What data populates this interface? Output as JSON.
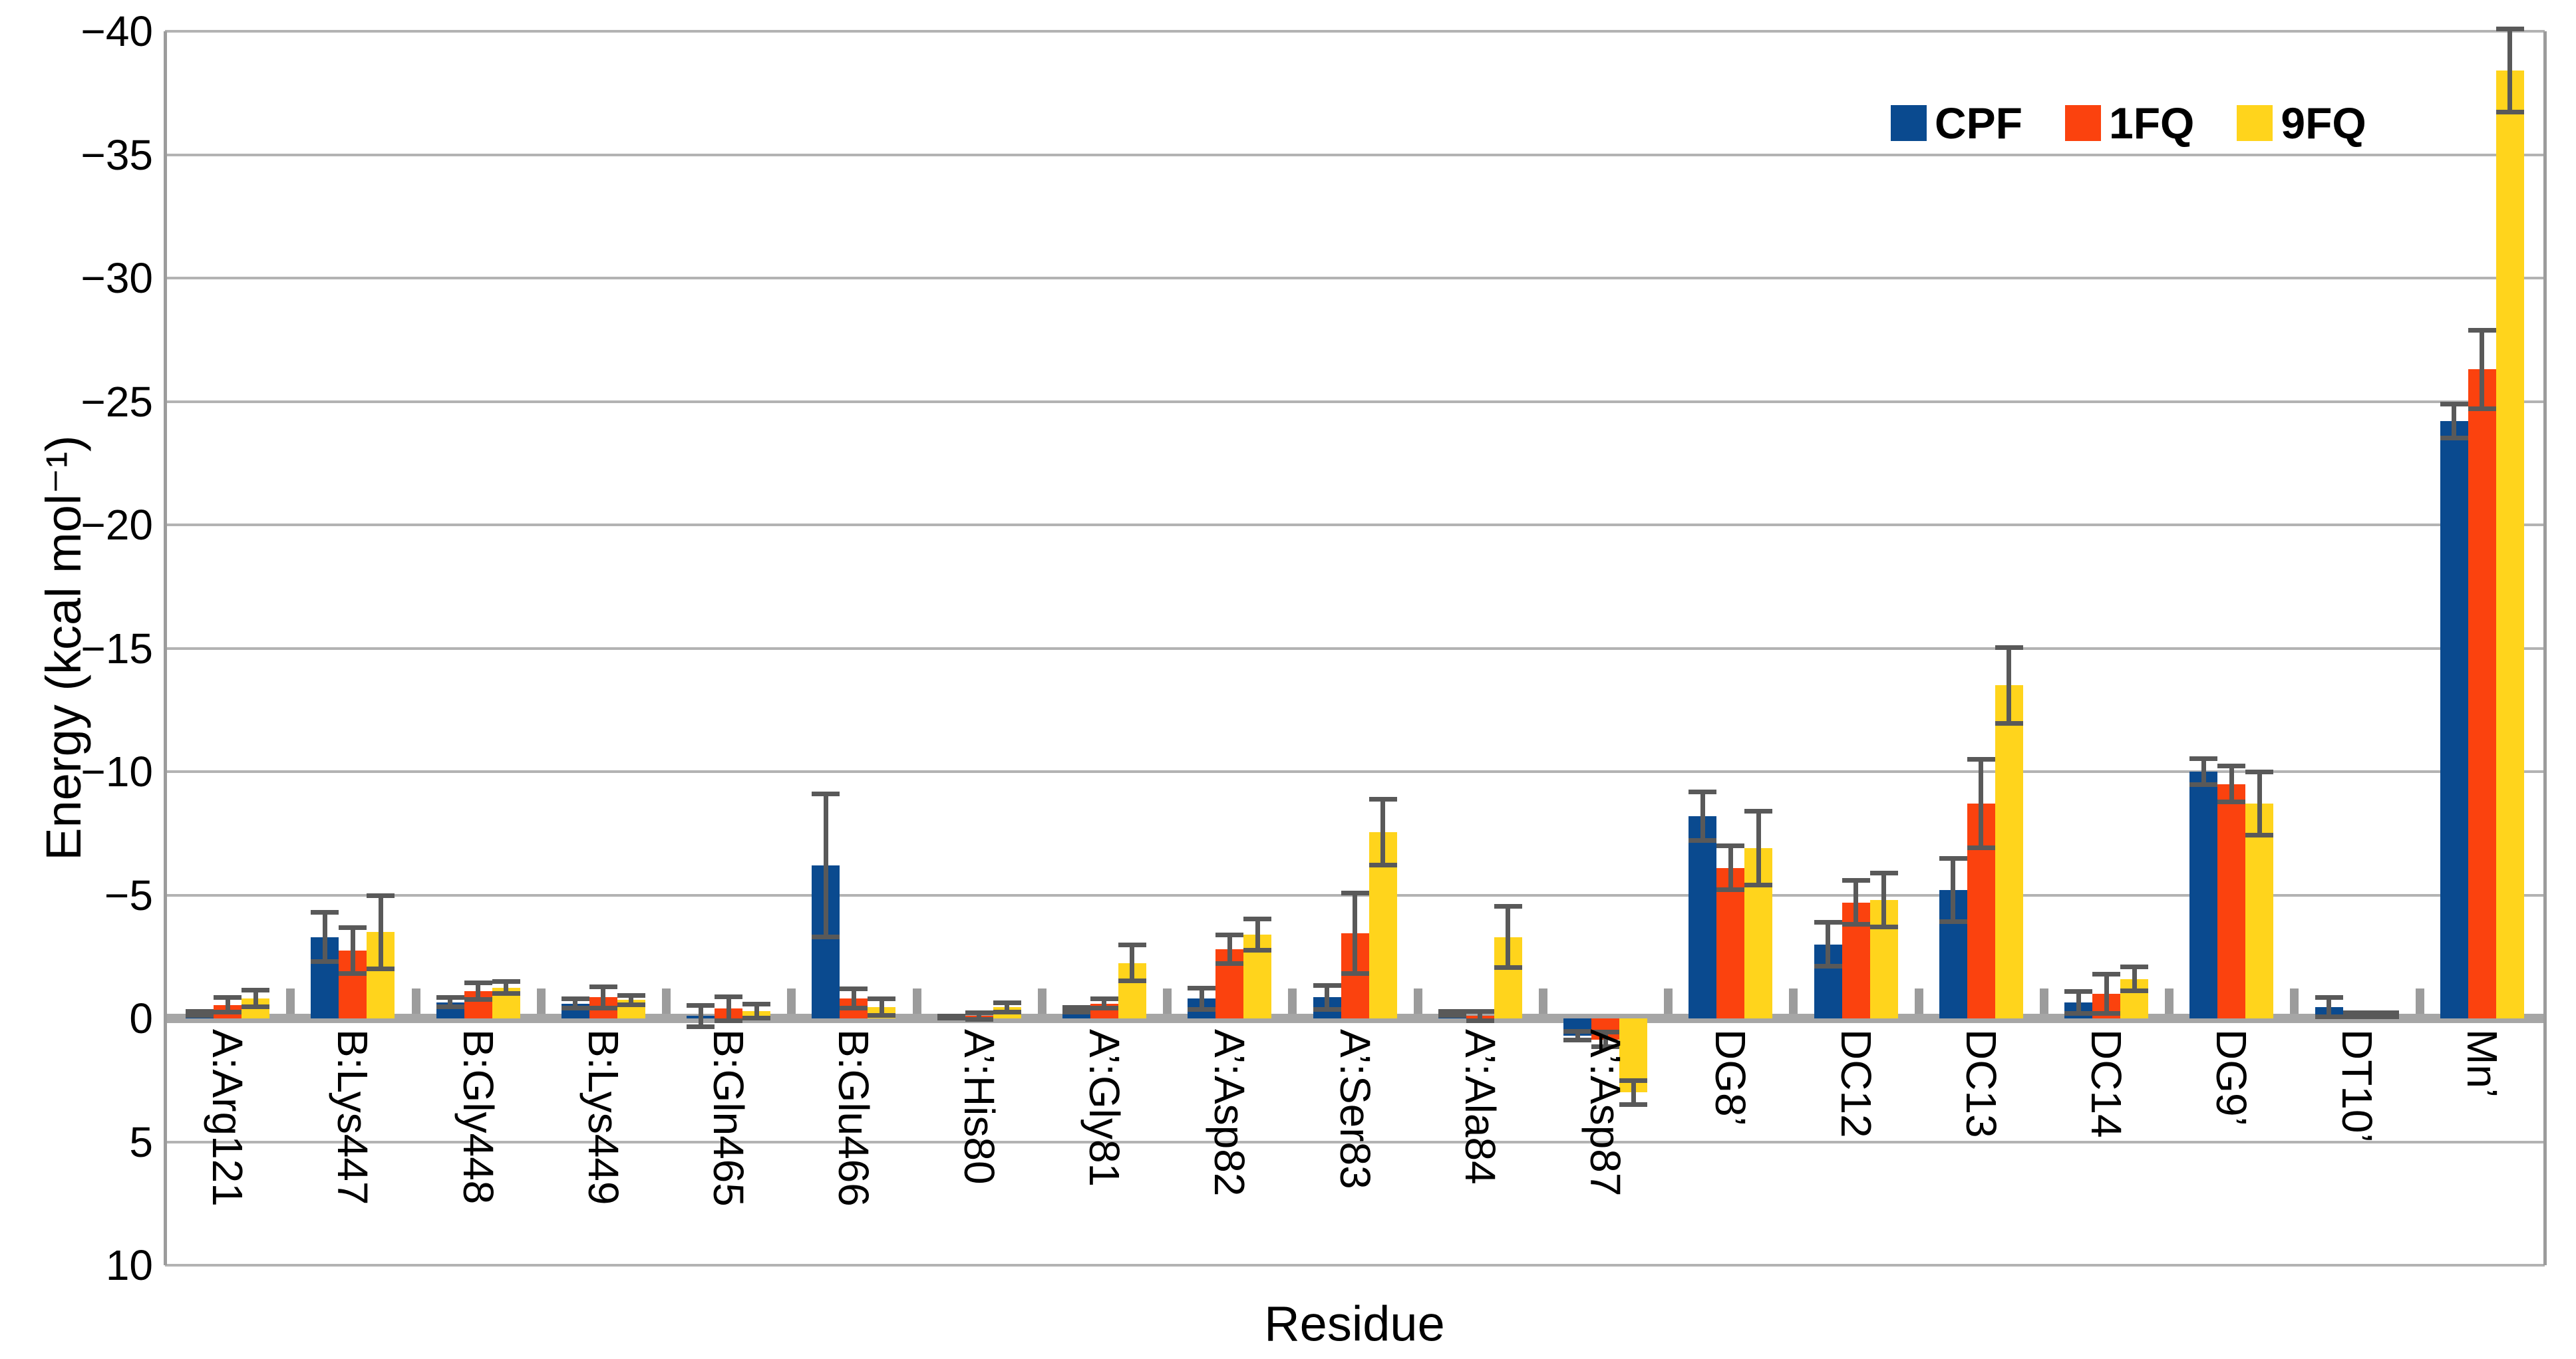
{
  "figure": {
    "y_axis_title": "Energy (kcal mol⁻¹)",
    "x_axis_title": "Residue"
  },
  "legend": [
    {
      "label": "CPF",
      "color": "#0a4a8f"
    },
    {
      "label": "1FQ",
      "color": "#fb420e"
    },
    {
      "label": "9FQ",
      "color": "#ffd41c"
    }
  ],
  "chart_data": {
    "type": "bar",
    "title": "",
    "xlabel": "Residue",
    "ylabel": "Energy (kcal mol⁻¹)",
    "y_axis_inverted": true,
    "ylim": [
      -40,
      10
    ],
    "grid": true,
    "legend_position": "top-right-inside",
    "error_bar_color": "#595959",
    "y_ticks": [
      {
        "value": -40,
        "label": "−40"
      },
      {
        "value": -35,
        "label": "−35"
      },
      {
        "value": -30,
        "label": "−30"
      },
      {
        "value": -25,
        "label": "−25"
      },
      {
        "value": -20,
        "label": "−20"
      },
      {
        "value": -15,
        "label": "−15"
      },
      {
        "value": -10,
        "label": "−10"
      },
      {
        "value": -5,
        "label": "−5"
      },
      {
        "value": 0,
        "label": "0"
      },
      {
        "value": 5,
        "label": "5"
      },
      {
        "value": 10,
        "label": "10"
      }
    ],
    "categories": [
      "A:Arg121",
      "B:Lys447",
      "B:Gly448",
      "B:Lys449",
      "B:Gln465",
      "B:Glu466",
      "A’:His80",
      "A’:Gly81",
      "A’:Asp82",
      "A’:Ser83",
      "A’:Ala84",
      "A’:Asp87",
      "DG8’",
      "DC12",
      "DC13",
      "DC14",
      "DG9’",
      "DT10’",
      "Mn’"
    ],
    "series": [
      {
        "name": "CPF",
        "color": "#0a4a8f",
        "values": [
          -0.2,
          -3.3,
          -0.65,
          -0.6,
          -0.1,
          -6.2,
          -0.05,
          -0.35,
          -0.8,
          -0.85,
          -0.2,
          0.7,
          -8.2,
          -3.0,
          -5.2,
          -0.65,
          -10.0,
          -0.45,
          -24.2
        ],
        "errors": [
          0.1,
          1.0,
          0.2,
          0.2,
          0.45,
          2.9,
          0.05,
          0.1,
          0.45,
          0.5,
          0.1,
          0.2,
          1.0,
          0.9,
          1.3,
          0.45,
          0.55,
          0.4,
          0.7
        ]
      },
      {
        "name": "1FQ",
        "color": "#fb420e",
        "values": [
          -0.55,
          -2.75,
          -1.1,
          -0.85,
          -0.4,
          -0.8,
          -0.1,
          -0.6,
          -2.8,
          -3.45,
          -0.1,
          0.85,
          -6.1,
          -4.7,
          -8.7,
          -1.0,
          -9.5,
          -0.15,
          -26.3
        ],
        "errors": [
          0.3,
          0.95,
          0.35,
          0.45,
          0.5,
          0.4,
          0.15,
          0.2,
          0.6,
          1.65,
          0.2,
          0.3,
          0.9,
          0.9,
          1.8,
          0.8,
          0.75,
          0.1,
          1.6
        ]
      },
      {
        "name": "9FQ",
        "color": "#ffd41c",
        "values": [
          -0.8,
          -3.5,
          -1.25,
          -0.75,
          -0.3,
          -0.45,
          -0.45,
          -2.25,
          -3.4,
          -7.55,
          -3.3,
          3.0,
          -6.9,
          -4.8,
          -13.5,
          -1.6,
          -8.7,
          -0.15,
          -38.4
        ],
        "errors": [
          0.35,
          1.5,
          0.25,
          0.2,
          0.3,
          0.35,
          0.2,
          0.75,
          0.65,
          1.35,
          1.25,
          0.5,
          1.5,
          1.1,
          1.55,
          0.5,
          1.3,
          0.1,
          1.7
        ]
      }
    ]
  }
}
